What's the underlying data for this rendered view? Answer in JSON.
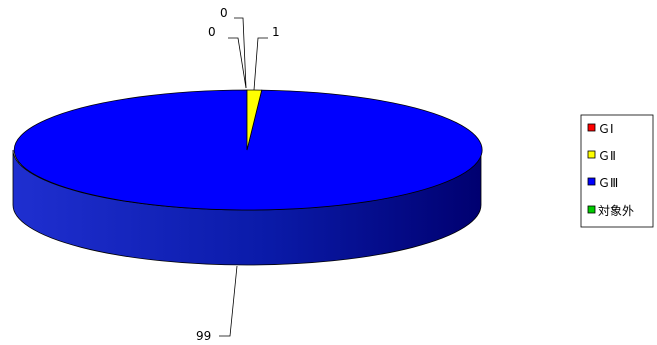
{
  "chart_data": {
    "type": "pie",
    "style": "3d-pie",
    "title": "",
    "categories": [
      "ＧⅠ",
      "ＧⅡ",
      "ＧⅢ",
      "対象外"
    ],
    "values": [
      0,
      1,
      99,
      0
    ],
    "data_labels": [
      "0",
      "1",
      "99",
      "0"
    ],
    "colors": [
      "#ff0000",
      "#ffff00",
      "#0000ff",
      "#00cc00"
    ],
    "side_color": "#000080",
    "legend_position": "right"
  }
}
